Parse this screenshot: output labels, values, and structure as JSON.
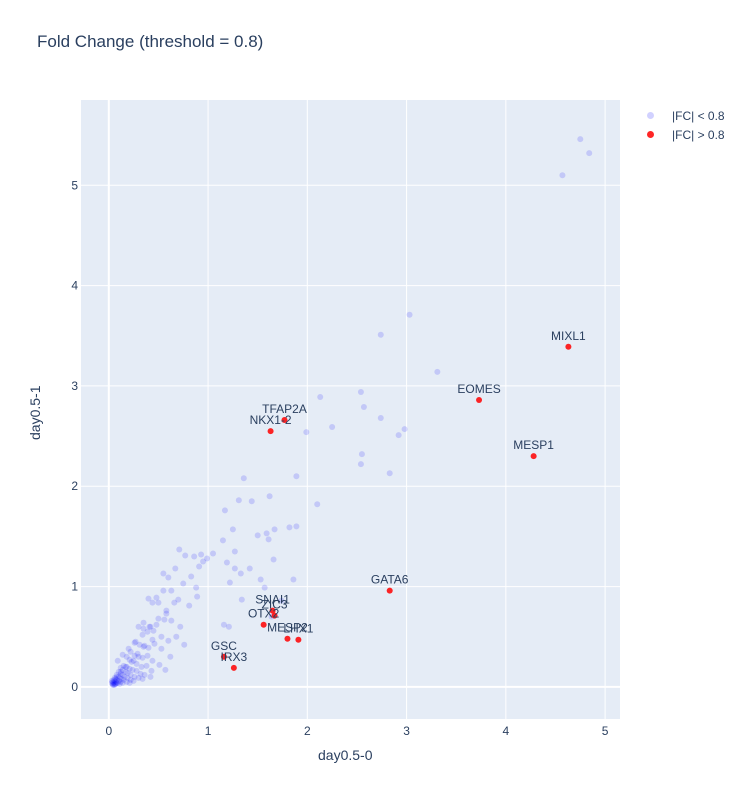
{
  "chart_data": {
    "type": "scatter",
    "title": "Fold Change (threshold = 0.8)",
    "xlabel": "day0.5-0",
    "ylabel": "day0.5-1",
    "xlim": [
      -0.28,
      5.15
    ],
    "ylim": [
      -0.32,
      5.85
    ],
    "x_ticks": [
      0,
      1,
      2,
      3,
      4,
      5
    ],
    "y_ticks": [
      0,
      1,
      2,
      3,
      4,
      5
    ],
    "grid": true,
    "legend_position": "top-right",
    "series": [
      {
        "name": "|FC| < 0.8",
        "color": "#0000ff",
        "x": [
          4.57,
          4.75,
          4.84,
          3.03,
          2.74,
          3.31,
          2.54,
          2.57,
          2.74,
          2.98,
          2.92,
          2.13,
          2.25,
          1.99,
          1.89,
          2.55,
          2.54,
          2.83,
          2.1,
          1.36,
          1.17,
          1.31,
          1.44,
          1.62,
          1.89,
          1.5,
          1.67,
          1.82,
          1.25,
          1.59,
          1.66,
          1.86,
          1.33,
          1.53,
          1.61,
          1.15,
          1.27,
          1.19,
          1.27,
          1.22,
          1.42,
          1.57,
          1.64,
          1.74,
          1.16,
          1.21,
          1.34,
          0.71,
          0.77,
          0.86,
          0.93,
          0.99,
          1.05,
          0.55,
          0.6,
          0.67,
          0.83,
          0.91,
          0.95,
          0.48,
          0.55,
          0.63,
          0.75,
          0.88,
          0.4,
          0.44,
          0.5,
          0.58,
          0.7,
          0.81,
          0.89,
          0.35,
          0.41,
          0.48,
          0.56,
          0.63,
          0.72,
          0.3,
          0.35,
          0.39,
          0.45,
          0.53,
          0.6,
          0.68,
          0.76,
          0.26,
          0.31,
          0.35,
          0.4,
          0.46,
          0.53,
          0.62,
          0.22,
          0.26,
          0.3,
          0.34,
          0.39,
          0.44,
          0.51,
          0.57,
          0.18,
          0.21,
          0.25,
          0.28,
          0.33,
          0.38,
          0.43,
          0.15,
          0.18,
          0.21,
          0.24,
          0.28,
          0.32,
          0.36,
          0.42,
          0.12,
          0.14,
          0.17,
          0.19,
          0.22,
          0.26,
          0.3,
          0.34,
          0.1,
          0.12,
          0.14,
          0.16,
          0.19,
          0.22,
          0.25,
          0.08,
          0.1,
          0.11,
          0.13,
          0.15,
          0.18,
          0.21,
          0.06,
          0.07,
          0.08,
          0.1,
          0.12,
          0.14,
          0.05,
          0.06,
          0.07,
          0.08,
          0.09,
          0.11,
          0.03,
          0.04,
          0.05,
          0.06,
          0.07,
          0.04,
          0.05,
          0.06,
          0.03,
          0.04,
          0.08,
          0.12,
          0.17,
          0.23,
          0.29,
          0.36,
          0.44,
          0.09,
          0.14,
          0.2,
          0.27,
          0.34,
          0.42,
          0.5,
          0.58,
          0.66
        ],
        "y": [
          5.1,
          5.46,
          5.32,
          3.71,
          3.51,
          3.14,
          2.94,
          2.79,
          2.68,
          2.57,
          2.51,
          2.89,
          2.59,
          2.54,
          2.1,
          2.32,
          2.22,
          2.13,
          1.82,
          2.08,
          1.76,
          1.86,
          1.85,
          1.9,
          1.6,
          1.51,
          1.57,
          1.59,
          1.57,
          1.53,
          1.27,
          1.07,
          1.13,
          1.07,
          1.47,
          1.46,
          1.35,
          1.24,
          1.18,
          1.04,
          1.18,
          0.99,
          0.7,
          0.86,
          0.62,
          0.6,
          0.87,
          1.37,
          1.31,
          1.3,
          1.32,
          1.28,
          1.33,
          1.13,
          1.09,
          1.18,
          1.1,
          1.2,
          1.25,
          0.89,
          0.96,
          0.96,
          1.03,
          0.99,
          0.88,
          0.84,
          0.84,
          0.73,
          0.87,
          0.81,
          0.9,
          0.64,
          0.6,
          0.62,
          0.67,
          0.66,
          0.6,
          0.6,
          0.58,
          0.55,
          0.56,
          0.5,
          0.46,
          0.5,
          0.42,
          0.44,
          0.42,
          0.4,
          0.39,
          0.43,
          0.38,
          0.3,
          0.35,
          0.31,
          0.3,
          0.29,
          0.31,
          0.26,
          0.22,
          0.17,
          0.3,
          0.27,
          0.26,
          0.23,
          0.2,
          0.21,
          0.16,
          0.21,
          0.2,
          0.18,
          0.17,
          0.16,
          0.13,
          0.12,
          0.1,
          0.19,
          0.17,
          0.15,
          0.14,
          0.12,
          0.1,
          0.09,
          0.08,
          0.15,
          0.13,
          0.12,
          0.1,
          0.09,
          0.07,
          0.06,
          0.12,
          0.1,
          0.09,
          0.08,
          0.07,
          0.05,
          0.04,
          0.09,
          0.08,
          0.07,
          0.06,
          0.05,
          0.04,
          0.07,
          0.06,
          0.05,
          0.04,
          0.04,
          0.03,
          0.06,
          0.05,
          0.04,
          0.03,
          0.03,
          0.02,
          0.02,
          0.02,
          0.04,
          0.03,
          0.1,
          0.15,
          0.2,
          0.25,
          0.33,
          0.41,
          0.47,
          0.26,
          0.32,
          0.38,
          0.45,
          0.52,
          0.6,
          0.68,
          0.76,
          0.84
        ]
      },
      {
        "name": "|FC| > 0.8",
        "color": "#ff0000",
        "points": [
          {
            "label": "MIXL1",
            "x": 4.63,
            "y": 3.39
          },
          {
            "label": "EOMES",
            "x": 3.73,
            "y": 2.86
          },
          {
            "label": "MESP1",
            "x": 4.28,
            "y": 2.3
          },
          {
            "label": "TFAP2A",
            "x": 1.77,
            "y": 2.66
          },
          {
            "label": "NKX1-2",
            "x": 1.63,
            "y": 2.55
          },
          {
            "label": "GATA6",
            "x": 2.83,
            "y": 0.96
          },
          {
            "label": "SNAI1",
            "x": 1.65,
            "y": 0.76
          },
          {
            "label": "ZIC3",
            "x": 1.67,
            "y": 0.71
          },
          {
            "label": "OTX2",
            "x": 1.56,
            "y": 0.62
          },
          {
            "label": "MESP2",
            "x": 1.8,
            "y": 0.48
          },
          {
            "label": "LHX1",
            "x": 1.91,
            "y": 0.47
          },
          {
            "label": "GSC",
            "x": 1.16,
            "y": 0.3
          },
          {
            "label": "IRX3",
            "x": 1.26,
            "y": 0.19
          }
        ]
      }
    ]
  }
}
